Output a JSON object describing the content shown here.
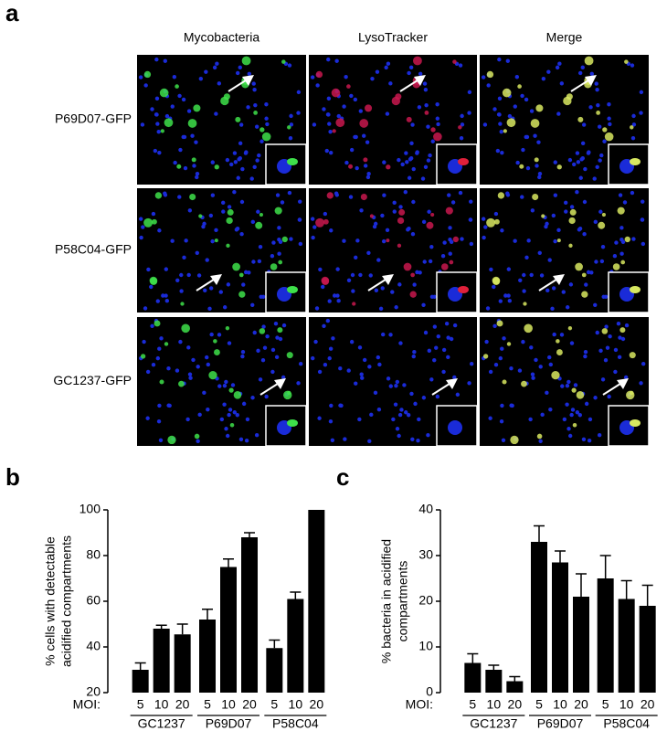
{
  "panel_a": {
    "label": "a",
    "columns": [
      "Mycobacteria",
      "LysoTracker",
      "Merge"
    ],
    "rows": [
      "P69D07-GFP",
      "P58C04-GFP",
      "GC1237-GFP"
    ]
  },
  "chart_data": [
    {
      "type": "bar",
      "panel_label": "b",
      "ylabel": [
        "% cells with detectable",
        "acidified compartments"
      ],
      "ylim": [
        20,
        100
      ],
      "yticks": [
        20,
        40,
        60,
        80,
        100
      ],
      "color": "#000000",
      "x_prefix": "MOI:",
      "groups": [
        {
          "name": "GC1237",
          "categories": [
            "5",
            "10",
            "20"
          ],
          "values": [
            30,
            48,
            45.5
          ],
          "errors": [
            3,
            1.5,
            4.5
          ]
        },
        {
          "name": "P69D07",
          "categories": [
            "5",
            "10",
            "20"
          ],
          "values": [
            52,
            75,
            88
          ],
          "errors": [
            4.5,
            3.5,
            2
          ]
        },
        {
          "name": "P58C04",
          "categories": [
            "5",
            "10",
            "20"
          ],
          "values": [
            39.5,
            61,
            100
          ],
          "errors": [
            3.5,
            3,
            null
          ]
        }
      ]
    },
    {
      "type": "bar",
      "panel_label": "c",
      "ylabel": [
        "% bacteria in acidified",
        "compartments"
      ],
      "ylim": [
        0,
        40
      ],
      "yticks": [
        0,
        10,
        20,
        30,
        40
      ],
      "color": "#000000",
      "x_prefix": "MOI:",
      "groups": [
        {
          "name": "GC1237",
          "categories": [
            "5",
            "10",
            "20"
          ],
          "values": [
            6.5,
            5,
            2.5
          ],
          "errors": [
            2,
            1,
            1
          ]
        },
        {
          "name": "P69D07",
          "categories": [
            "5",
            "10",
            "20"
          ],
          "values": [
            33,
            28.5,
            21
          ],
          "errors": [
            3.5,
            2.5,
            5
          ]
        },
        {
          "name": "P58C04",
          "categories": [
            "5",
            "10",
            "20"
          ],
          "values": [
            25,
            20.5,
            19
          ],
          "errors": [
            5,
            4,
            4.5
          ]
        }
      ]
    }
  ]
}
